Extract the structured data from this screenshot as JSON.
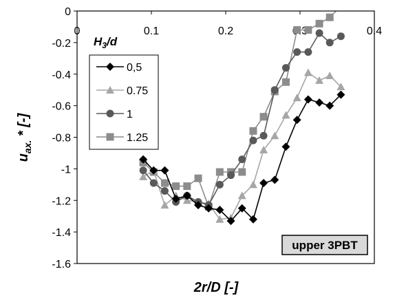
{
  "chart_data": {
    "type": "line",
    "xlabel": "2r/D [-]",
    "ylabel_main": "u",
    "ylabel_sub": "ax.",
    "ylabel_suffix": " * [-]",
    "xlim": [
      0,
      0.4
    ],
    "ylim": [
      -1.6,
      0
    ],
    "x_ticks": [
      0,
      0.1,
      0.2,
      0.3,
      0.4
    ],
    "x_tick_labels": [
      "0",
      "0.1",
      "0.2",
      "0.3",
      "0.4"
    ],
    "y_ticks": [
      0,
      -0.2,
      -0.4,
      -0.6,
      -0.8,
      -1,
      -1.2,
      -1.4,
      -1.6
    ],
    "y_tick_labels": [
      "0",
      "-0.2",
      "-0.4",
      "-0.6",
      "-0.8",
      "-1",
      "-1.2",
      "-1.4",
      "-1.6"
    ],
    "grid": false,
    "legend": {
      "title_main": "H",
      "title_sub": "3",
      "title_suffix": "/d",
      "placement": "left"
    },
    "annotation": "upper 3PBT",
    "series": [
      {
        "name": "0,5",
        "marker": "diamond",
        "color": "#000000",
        "x": [
          0.089,
          0.103,
          0.118,
          0.133,
          0.148,
          0.163,
          0.177,
          0.192,
          0.207,
          0.222,
          0.237,
          0.251,
          0.266,
          0.281,
          0.296,
          0.311,
          0.326,
          0.34,
          0.355
        ],
        "y": [
          -0.94,
          -1.01,
          -1.01,
          -1.19,
          -1.17,
          -1.23,
          -1.25,
          -1.26,
          -1.33,
          -1.25,
          -1.32,
          -1.09,
          -1.07,
          -0.86,
          -0.69,
          -0.56,
          -0.58,
          -0.6,
          -0.53
        ]
      },
      {
        "name": "0.75",
        "marker": "triangle",
        "color": "#a6a6a6",
        "x": [
          0.089,
          0.103,
          0.118,
          0.133,
          0.148,
          0.163,
          0.177,
          0.192,
          0.207,
          0.222,
          0.237,
          0.251,
          0.266,
          0.281,
          0.296,
          0.311,
          0.326,
          0.34,
          0.355
        ],
        "y": [
          -1.05,
          -1.01,
          -1.23,
          -1.17,
          -1.2,
          -1.21,
          -1.22,
          -1.32,
          -1.31,
          -1.17,
          -1.1,
          -0.88,
          -0.79,
          -0.66,
          -0.55,
          -0.39,
          -0.44,
          -0.41,
          -0.48
        ]
      },
      {
        "name": "1",
        "marker": "circle",
        "color": "#595959",
        "x": [
          0.089,
          0.103,
          0.118,
          0.133,
          0.148,
          0.163,
          0.177,
          0.192,
          0.207,
          0.222,
          0.237,
          0.251,
          0.266,
          0.281,
          0.296,
          0.311,
          0.326,
          0.34,
          0.355
        ],
        "y": [
          -1.01,
          -1.09,
          -1.14,
          -1.21,
          -1.17,
          -1.21,
          -1.23,
          -1.1,
          -1.04,
          -0.94,
          -0.82,
          -0.79,
          -0.5,
          -0.36,
          -0.26,
          -0.26,
          -0.14,
          -0.2,
          -0.16
        ]
      },
      {
        "name": "1.25",
        "marker": "square",
        "color": "#8c8c8c",
        "x": [
          0.089,
          0.103,
          0.118,
          0.133,
          0.148,
          0.163,
          0.177,
          0.192,
          0.207,
          0.222,
          0.237,
          0.251,
          0.266,
          0.281,
          0.296,
          0.311,
          0.326,
          0.34,
          0.355
        ],
        "y": [
          -0.96,
          -1.02,
          -1.09,
          -1.11,
          -1.11,
          -1.06,
          -1.24,
          -1.02,
          -1.02,
          -1.02,
          -0.76,
          -0.67,
          -0.51,
          -0.45,
          -0.12,
          -0.12,
          -0.08,
          -0.04,
          0.03
        ]
      }
    ]
  }
}
